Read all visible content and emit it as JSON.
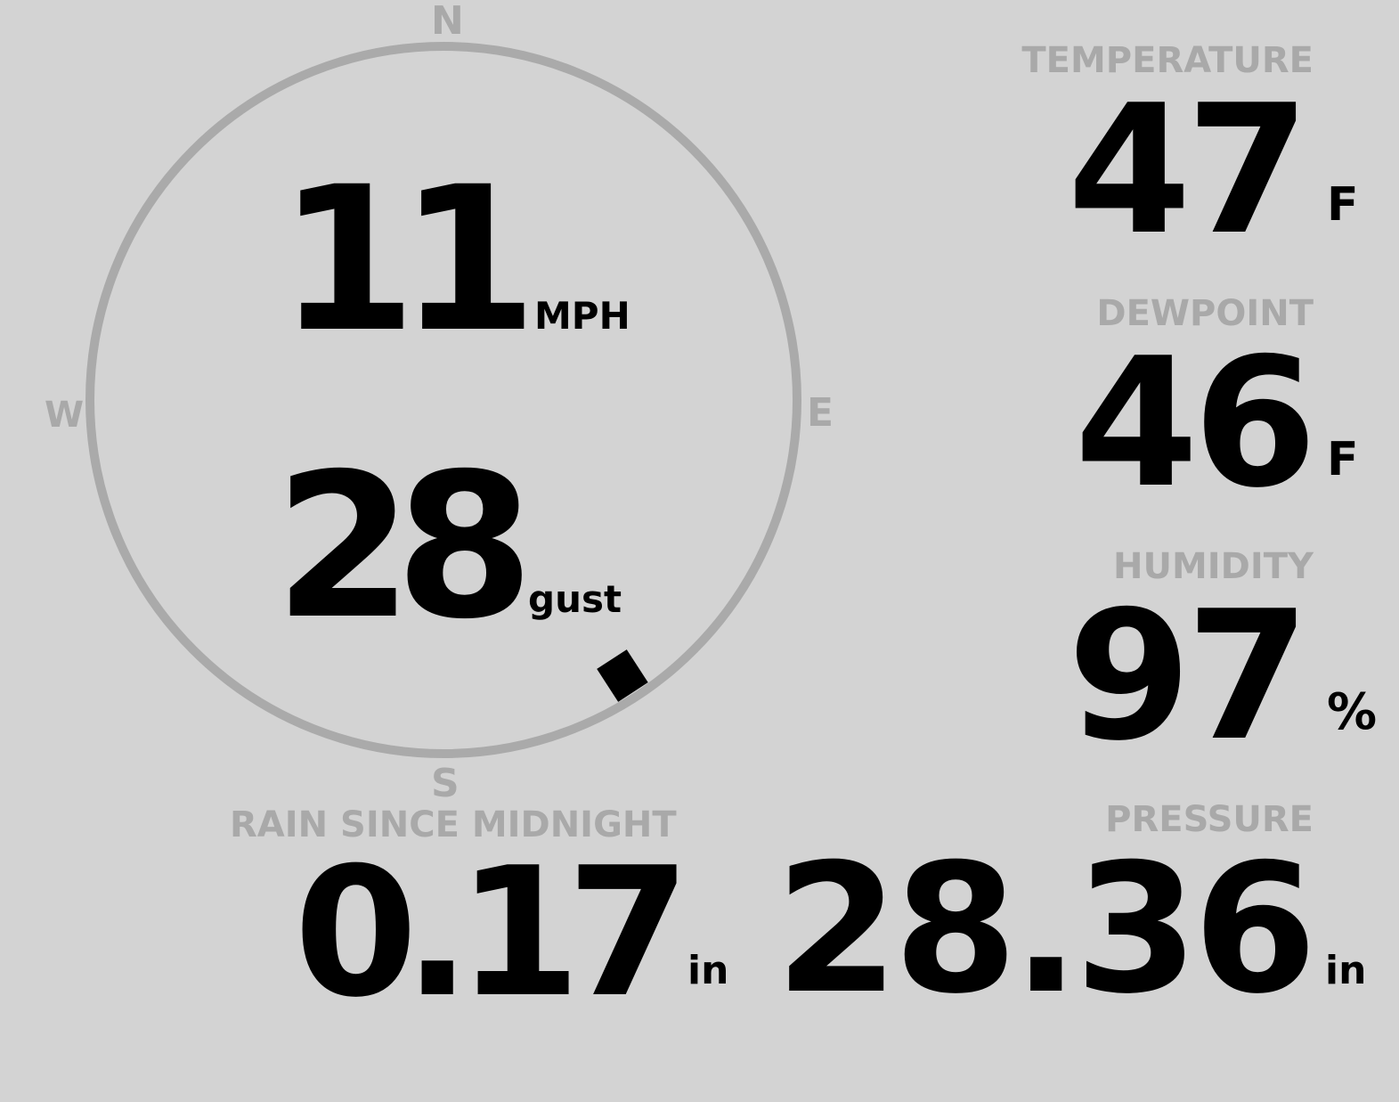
{
  "compass": {
    "north": "N",
    "south": "S",
    "east": "E",
    "west": "W",
    "wind_direction_deg": 147,
    "ring_color": "#aaaaaa"
  },
  "wind": {
    "speed": "11",
    "speed_unit": "MPH",
    "gust": "28",
    "gust_unit": "gust"
  },
  "temperature": {
    "label": "TEMPERATURE",
    "value": "47",
    "unit": "F"
  },
  "dewpoint": {
    "label": "DEWPOINT",
    "value": "46",
    "unit": "F"
  },
  "humidity": {
    "label": "HUMIDITY",
    "value": "97",
    "unit": "%"
  },
  "rain": {
    "label": "RAIN SINCE MIDNIGHT",
    "value": "0.17",
    "unit": "in"
  },
  "pressure": {
    "label": "PRESSURE",
    "value": "28.36",
    "unit": "in"
  },
  "colors": {
    "background": "#d3d3d3",
    "label": "#a9a9a9",
    "value": "#000000"
  }
}
